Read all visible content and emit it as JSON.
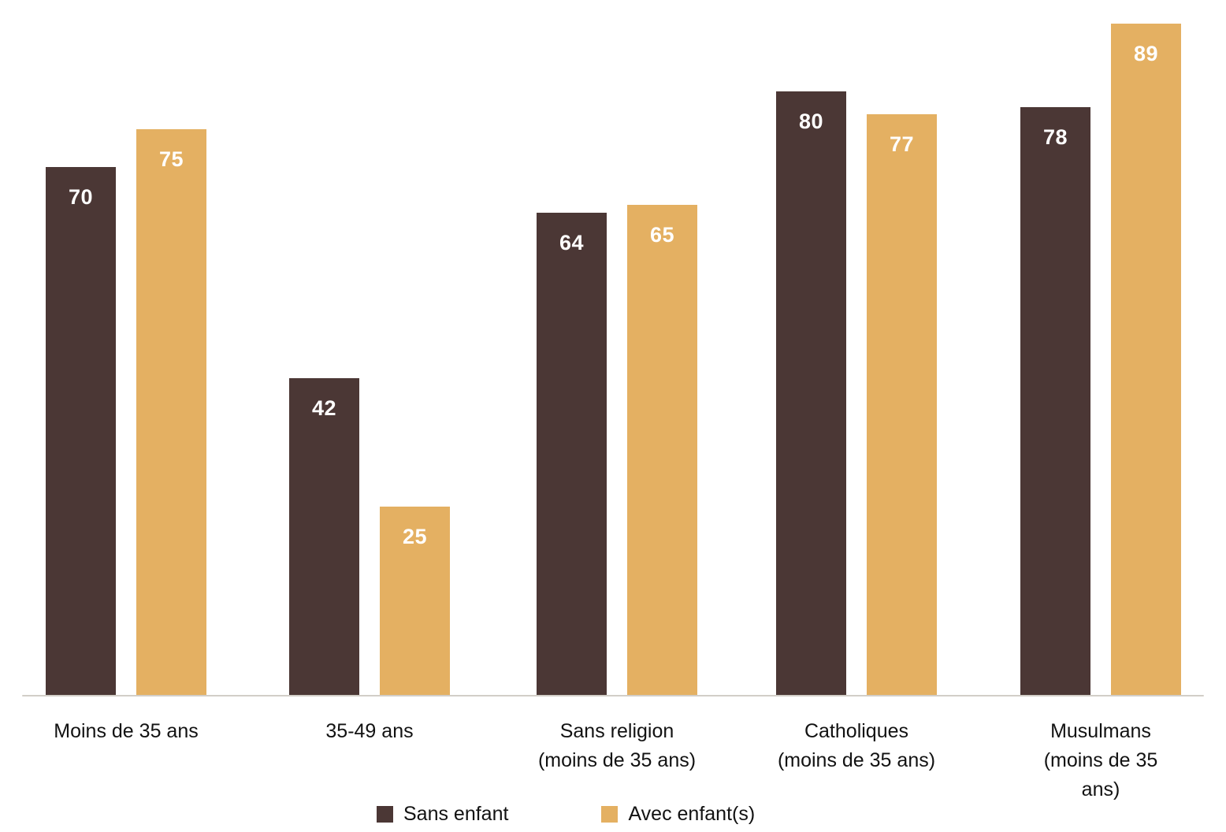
{
  "chart_data": {
    "type": "bar",
    "categories": [
      "Moins de 35 ans",
      "35-49 ans",
      "Sans religion\n(moins de 35 ans)",
      "Catholiques\n(moins de 35 ans)",
      "Musulmans\n(moins de 35 ans)"
    ],
    "series": [
      {
        "name": "Sans enfant",
        "color": "#4b3735",
        "values": [
          70,
          42,
          64,
          80,
          78
        ]
      },
      {
        "name": "Avec enfant(s)",
        "color": "#e4b062",
        "values": [
          75,
          25,
          65,
          77,
          89
        ]
      }
    ],
    "ylim": [
      0,
      92
    ],
    "grid": false,
    "legend_position": "bottom",
    "value_labels": "inside-top",
    "value_label_color": "#ffffff",
    "axis_line_color": "#d2cec8"
  }
}
